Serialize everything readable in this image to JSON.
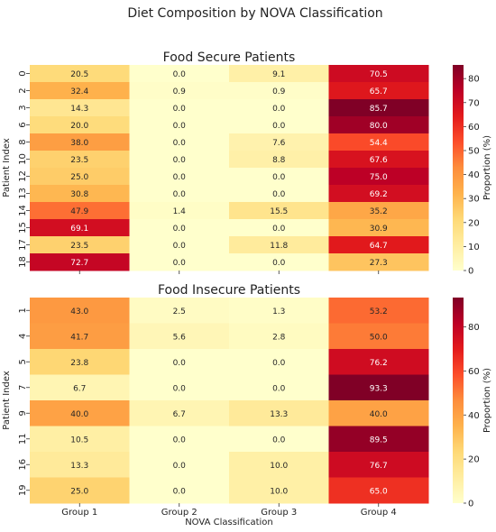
{
  "figure_title": "Diet Composition by NOVA Classification",
  "chart_data": [
    {
      "type": "heatmap",
      "title": "Food Secure Patients",
      "ylabel": "Patient Index",
      "xlabel": "",
      "columns": [
        "Group 1",
        "Group 2",
        "Group 3",
        "Group 4"
      ],
      "rows": [
        "0",
        "2",
        "3",
        "6",
        "8",
        "10",
        "12",
        "13",
        "14",
        "15",
        "17",
        "18"
      ],
      "values": [
        [
          20.5,
          0.0,
          9.1,
          70.5
        ],
        [
          32.4,
          0.9,
          0.9,
          65.7
        ],
        [
          14.3,
          0.0,
          0.0,
          85.7
        ],
        [
          20.0,
          0.0,
          0.0,
          80.0
        ],
        [
          38.0,
          0.0,
          7.6,
          54.4
        ],
        [
          23.5,
          0.0,
          8.8,
          67.6
        ],
        [
          25.0,
          0.0,
          0.0,
          75.0
        ],
        [
          30.8,
          0.0,
          0.0,
          69.2
        ],
        [
          47.9,
          1.4,
          15.5,
          35.2
        ],
        [
          69.1,
          0.0,
          0.0,
          30.9
        ],
        [
          23.5,
          0.0,
          11.8,
          64.7
        ],
        [
          72.7,
          0.0,
          0.0,
          27.3
        ]
      ],
      "colorbar": {
        "label": "Proportion (%)",
        "ticks": [
          0,
          10,
          20,
          30,
          40,
          50,
          60,
          70,
          80
        ],
        "range": [
          0,
          85.7
        ]
      }
    },
    {
      "type": "heatmap",
      "title": "Food Insecure Patients",
      "ylabel": "Patient Index",
      "xlabel": "NOVA Classification",
      "columns": [
        "Group 1",
        "Group 2",
        "Group 3",
        "Group 4"
      ],
      "rows": [
        "1",
        "4",
        "5",
        "7",
        "9",
        "11",
        "16",
        "19"
      ],
      "values": [
        [
          43.0,
          2.5,
          1.3,
          53.2
        ],
        [
          41.7,
          5.6,
          2.8,
          50.0
        ],
        [
          23.8,
          0.0,
          0.0,
          76.2
        ],
        [
          6.7,
          0.0,
          0.0,
          93.3
        ],
        [
          40.0,
          6.7,
          13.3,
          40.0
        ],
        [
          10.5,
          0.0,
          0.0,
          89.5
        ],
        [
          13.3,
          0.0,
          10.0,
          76.7
        ],
        [
          25.0,
          0.0,
          10.0,
          65.0
        ]
      ],
      "colorbar": {
        "label": "Proportion (%)",
        "ticks": [
          0,
          20,
          40,
          60,
          80
        ],
        "range": [
          0,
          93.3
        ]
      }
    }
  ]
}
